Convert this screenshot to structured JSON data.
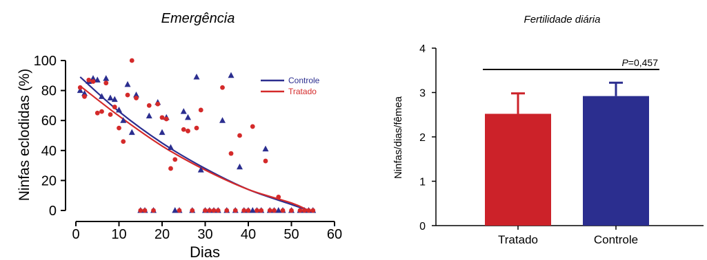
{
  "chart_data": [
    {
      "type": "scatter",
      "title": "Emergência",
      "xlabel": "Dias",
      "ylabel": "Ninfas eclodidas (%)",
      "xlim": [
        0,
        60
      ],
      "ylim": [
        0,
        100
      ],
      "x_ticks": [
        "0",
        "10",
        "20",
        "30",
        "40",
        "50",
        "60"
      ],
      "y_ticks": [
        "0",
        "20",
        "40",
        "60",
        "80",
        "100"
      ],
      "legend_position": "top-right",
      "grid": false,
      "series": [
        {
          "name": "Controle",
          "color": "#2b2e8f",
          "marker": "triangle",
          "points": [
            [
              1,
              80
            ],
            [
              2,
              78
            ],
            [
              3,
              86
            ],
            [
              4,
              88
            ],
            [
              5,
              87
            ],
            [
              6,
              76
            ],
            [
              7,
              88
            ],
            [
              8,
              75
            ],
            [
              9,
              74
            ],
            [
              10,
              67
            ],
            [
              11,
              60
            ],
            [
              12,
              84
            ],
            [
              13,
              52
            ],
            [
              14,
              77
            ],
            [
              15,
              0
            ],
            [
              16,
              0
            ],
            [
              17,
              63
            ],
            [
              18,
              0
            ],
            [
              19,
              72
            ],
            [
              20,
              52
            ],
            [
              21,
              62
            ],
            [
              22,
              42
            ],
            [
              23,
              0
            ],
            [
              24,
              0
            ],
            [
              25,
              66
            ],
            [
              26,
              62
            ],
            [
              27,
              0
            ],
            [
              28,
              89
            ],
            [
              29,
              27
            ],
            [
              30,
              0
            ],
            [
              31,
              0
            ],
            [
              32,
              0
            ],
            [
              33,
              0
            ],
            [
              34,
              60
            ],
            [
              35,
              0
            ],
            [
              36,
              90
            ],
            [
              37,
              0
            ],
            [
              38,
              29
            ],
            [
              39,
              0
            ],
            [
              40,
              0
            ],
            [
              41,
              0
            ],
            [
              42,
              0
            ],
            [
              43,
              0
            ],
            [
              44,
              41
            ],
            [
              45,
              0
            ],
            [
              46,
              0
            ],
            [
              47,
              0
            ],
            [
              48,
              0
            ],
            [
              50,
              0
            ],
            [
              52,
              0
            ],
            [
              53,
              0
            ],
            [
              54,
              0
            ],
            [
              55,
              0
            ]
          ],
          "fit": [
            [
              1,
              89
            ],
            [
              10,
              66
            ],
            [
              20,
              45
            ],
            [
              30,
              28
            ],
            [
              40,
              14
            ],
            [
              50,
              4
            ],
            [
              54,
              0
            ]
          ]
        },
        {
          "name": "Tratado",
          "color": "#d42a2a",
          "marker": "circle",
          "points": [
            [
              1,
              82
            ],
            [
              2,
              76
            ],
            [
              3,
              87
            ],
            [
              4,
              86
            ],
            [
              5,
              65
            ],
            [
              6,
              66
            ],
            [
              7,
              85
            ],
            [
              8,
              64
            ],
            [
              9,
              69
            ],
            [
              10,
              55
            ],
            [
              11,
              46
            ],
            [
              12,
              77
            ],
            [
              13,
              100
            ],
            [
              14,
              75
            ],
            [
              15,
              0
            ],
            [
              16,
              0
            ],
            [
              17,
              70
            ],
            [
              18,
              0
            ],
            [
              19,
              71
            ],
            [
              20,
              62
            ],
            [
              21,
              61
            ],
            [
              22,
              28
            ],
            [
              23,
              34
            ],
            [
              24,
              0
            ],
            [
              25,
              54
            ],
            [
              26,
              53
            ],
            [
              27,
              0
            ],
            [
              28,
              55
            ],
            [
              29,
              67
            ],
            [
              30,
              0
            ],
            [
              31,
              0
            ],
            [
              32,
              0
            ],
            [
              33,
              0
            ],
            [
              34,
              82
            ],
            [
              35,
              0
            ],
            [
              36,
              38
            ],
            [
              37,
              0
            ],
            [
              38,
              50
            ],
            [
              39,
              0
            ],
            [
              40,
              0
            ],
            [
              41,
              56
            ],
            [
              42,
              0
            ],
            [
              43,
              0
            ],
            [
              44,
              33
            ],
            [
              45,
              0
            ],
            [
              46,
              0
            ],
            [
              47,
              9
            ],
            [
              48,
              0
            ],
            [
              50,
              0
            ],
            [
              52,
              0
            ],
            [
              53,
              0
            ],
            [
              54,
              0
            ],
            [
              55,
              0
            ]
          ],
          "fit": [
            [
              1,
              83
            ],
            [
              10,
              63
            ],
            [
              20,
              43
            ],
            [
              30,
              27
            ],
            [
              40,
              14
            ],
            [
              50,
              5
            ],
            [
              54,
              0
            ]
          ]
        }
      ]
    },
    {
      "type": "bar",
      "title": "Fertilidade diária",
      "xlabel": "",
      "ylabel": "Ninfas/dias/fêmea",
      "ylim": [
        0,
        4
      ],
      "y_ticks": [
        "0",
        "1",
        "2",
        "3",
        "4"
      ],
      "categories": [
        "Tratado",
        "Controle"
      ],
      "values": [
        2.52,
        2.92
      ],
      "errors": [
        0.46,
        0.3
      ],
      "colors": [
        "#cc2229",
        "#2b2e8f"
      ],
      "annotation": {
        "p_symbol": "P",
        "text": "=0,457"
      }
    }
  ]
}
